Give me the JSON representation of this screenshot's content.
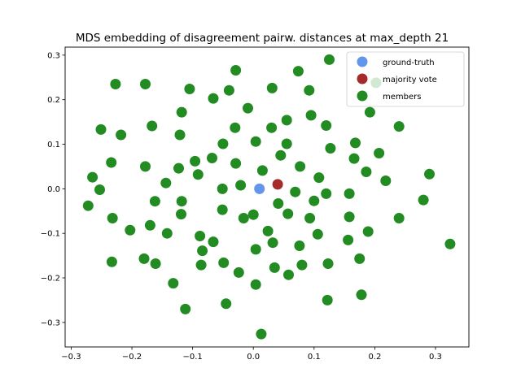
{
  "chart_data": {
    "type": "scatter",
    "title": "MDS embedding of disagreement pairw. distances at max_depth 21",
    "xlabel": "",
    "ylabel": "",
    "xlim": [
      -0.31,
      0.355
    ],
    "ylim": [
      -0.355,
      0.318
    ],
    "xticks": [
      -0.3,
      -0.2,
      -0.1,
      0.0,
      0.1,
      0.2,
      0.3
    ],
    "xtick_labels": [
      "−0.3",
      "−0.2",
      "−0.1",
      "0.0",
      "0.1",
      "0.2",
      "0.3"
    ],
    "yticks": [
      -0.3,
      -0.2,
      -0.1,
      0.0,
      0.1,
      0.2,
      0.3
    ],
    "ytick_labels": [
      "−0.3",
      "−0.2",
      "−0.1",
      "0.0",
      "0.1",
      "0.2",
      "0.3"
    ],
    "grid": false,
    "legend_position": "top-right",
    "series": [
      {
        "name": "ground-truth",
        "color": "#6495ed",
        "points": [
          [
            0.01,
            0.0
          ]
        ]
      },
      {
        "name": "majority vote",
        "color": "#a52a2a",
        "points": [
          [
            0.04,
            0.01
          ]
        ]
      },
      {
        "name": "members",
        "color": "#228b22",
        "points": [
          [
            -0.227,
            0.235
          ],
          [
            -0.178,
            0.235
          ],
          [
            -0.105,
            0.224
          ],
          [
            -0.04,
            0.221
          ],
          [
            -0.029,
            0.266
          ],
          [
            0.031,
            0.226
          ],
          [
            0.074,
            0.264
          ],
          [
            0.092,
            0.221
          ],
          [
            0.125,
            0.29
          ],
          [
            0.202,
            0.238
          ],
          [
            -0.118,
            0.172
          ],
          [
            -0.066,
            0.203
          ],
          [
            -0.009,
            0.181
          ],
          [
            0.192,
            0.172
          ],
          [
            -0.251,
            0.133
          ],
          [
            -0.218,
            0.121
          ],
          [
            -0.167,
            0.141
          ],
          [
            -0.121,
            0.121
          ],
          [
            -0.03,
            0.137
          ],
          [
            0.03,
            0.137
          ],
          [
            0.055,
            0.154
          ],
          [
            0.095,
            0.165
          ],
          [
            0.12,
            0.142
          ],
          [
            0.24,
            0.14
          ],
          [
            -0.05,
            0.101
          ],
          [
            0.004,
            0.106
          ],
          [
            0.055,
            0.101
          ],
          [
            0.127,
            0.091
          ],
          [
            0.168,
            0.103
          ],
          [
            0.207,
            0.08
          ],
          [
            0.045,
            0.075
          ],
          [
            -0.234,
            0.059
          ],
          [
            -0.178,
            0.05
          ],
          [
            -0.096,
            0.062
          ],
          [
            -0.068,
            0.069
          ],
          [
            -0.029,
            0.057
          ],
          [
            0.077,
            0.05
          ],
          [
            0.166,
            0.068
          ],
          [
            -0.265,
            0.026
          ],
          [
            -0.253,
            -0.002
          ],
          [
            -0.144,
            0.013
          ],
          [
            -0.123,
            0.046
          ],
          [
            -0.091,
            0.032
          ],
          [
            -0.051,
            0.0
          ],
          [
            -0.021,
            0.008
          ],
          [
            0.015,
            0.041
          ],
          [
            0.108,
            0.025
          ],
          [
            0.186,
            0.038
          ],
          [
            0.218,
            0.018
          ],
          [
            0.29,
            0.033
          ],
          [
            -0.272,
            -0.038
          ],
          [
            -0.162,
            -0.028
          ],
          [
            -0.118,
            -0.028
          ],
          [
            -0.051,
            -0.047
          ],
          [
            0.0,
            -0.058
          ],
          [
            0.041,
            -0.033
          ],
          [
            0.069,
            -0.007
          ],
          [
            0.1,
            -0.027
          ],
          [
            0.12,
            -0.011
          ],
          [
            0.158,
            -0.011
          ],
          [
            0.28,
            -0.025
          ],
          [
            -0.232,
            -0.066
          ],
          [
            -0.17,
            -0.082
          ],
          [
            -0.119,
            -0.057
          ],
          [
            -0.016,
            -0.066
          ],
          [
            0.057,
            -0.056
          ],
          [
            0.093,
            -0.066
          ],
          [
            0.158,
            -0.063
          ],
          [
            0.24,
            -0.066
          ],
          [
            -0.203,
            -0.093
          ],
          [
            -0.142,
            -0.1
          ],
          [
            -0.088,
            -0.106
          ],
          [
            -0.066,
            -0.119
          ],
          [
            0.024,
            -0.095
          ],
          [
            0.032,
            -0.121
          ],
          [
            0.076,
            -0.128
          ],
          [
            0.106,
            -0.102
          ],
          [
            0.156,
            -0.115
          ],
          [
            0.189,
            -0.096
          ],
          [
            0.324,
            -0.124
          ],
          [
            -0.233,
            -0.164
          ],
          [
            -0.18,
            -0.157
          ],
          [
            -0.161,
            -0.168
          ],
          [
            -0.132,
            -0.212
          ],
          [
            -0.084,
            -0.139
          ],
          [
            -0.086,
            -0.171
          ],
          [
            -0.049,
            -0.166
          ],
          [
            -0.024,
            -0.188
          ],
          [
            0.004,
            -0.136
          ],
          [
            0.035,
            -0.177
          ],
          [
            0.058,
            -0.193
          ],
          [
            0.08,
            -0.171
          ],
          [
            0.123,
            -0.168
          ],
          [
            0.175,
            -0.157
          ],
          [
            -0.112,
            -0.27
          ],
          [
            -0.045,
            -0.258
          ],
          [
            0.004,
            -0.215
          ],
          [
            0.122,
            -0.25
          ],
          [
            0.178,
            -0.238
          ],
          [
            0.013,
            -0.326
          ]
        ]
      }
    ]
  }
}
